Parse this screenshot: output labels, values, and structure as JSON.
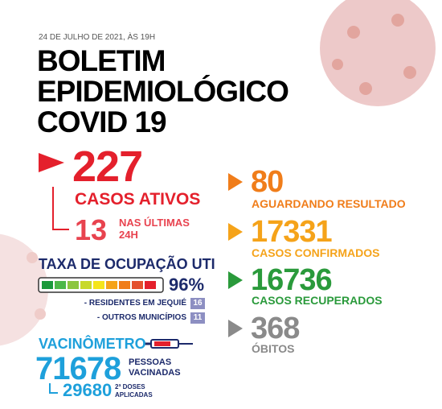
{
  "header": {
    "date": "24 DE JULHO DE 2021, ÀS 19H",
    "title_lines": [
      "BOLETIM",
      "EPIDEMIOLÓGICO",
      "COVID 19"
    ]
  },
  "active": {
    "value": "227",
    "label": "CASOS ATIVOS",
    "recent_value": "13",
    "recent_label_lines": [
      "NAS ÚLTIMAS",
      "24H"
    ]
  },
  "uti": {
    "title": "TAXA DE OCUPAÇÃO UTI",
    "percent": "96%",
    "rows": [
      {
        "label": "- RESIDENTES EM JEQUIÉ",
        "value": "16"
      },
      {
        "label": "- OUTROS MUNICÍPIOS",
        "value": "11"
      }
    ]
  },
  "vaccine": {
    "title": "VACINÔMETRO",
    "value": "71678",
    "label_lines": [
      "PESSOAS",
      "VACINADAS"
    ],
    "second_value": "29680",
    "second_label_lines": [
      "2ª DOSES",
      "APLICADAS"
    ]
  },
  "stats": [
    {
      "value": "80",
      "label": "AGUARDANDO RESULTADO"
    },
    {
      "value": "17331",
      "label": "CASOS CONFIRMADOS"
    },
    {
      "value": "16736",
      "label": "CASOS RECUPERADOS"
    },
    {
      "value": "368",
      "label": "ÓBITOS"
    }
  ]
}
